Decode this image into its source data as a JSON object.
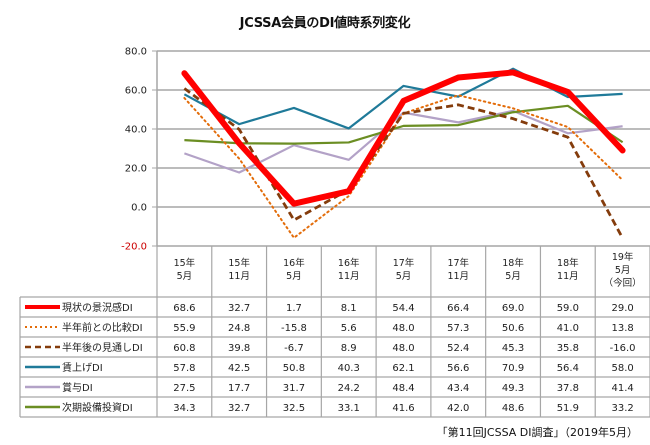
{
  "chart_data": {
    "type": "line",
    "title": "JCSSA会員のDI値時系列変化",
    "xlabel": "",
    "ylabel": "",
    "ylim": [
      -20,
      80
    ],
    "yticks": [
      "80.0",
      "60.0",
      "40.0",
      "20.0",
      "0.0",
      "-20.0"
    ],
    "ytick_values": [
      80,
      60,
      40,
      20,
      0,
      -20
    ],
    "grid": true,
    "legend": "data-table-left",
    "categories": [
      [
        "15年",
        "5月"
      ],
      [
        "15年",
        "11月"
      ],
      [
        "16年",
        "5月"
      ],
      [
        "16年",
        "11月"
      ],
      [
        "17年",
        "5月"
      ],
      [
        "17年",
        "11月"
      ],
      [
        "18年",
        "5月"
      ],
      [
        "18年",
        "11月"
      ],
      [
        "19年",
        "5月",
        "（今回）"
      ]
    ],
    "series": [
      {
        "name": "現状の景況感DI",
        "color": "#ff0000",
        "style": "solid-thick",
        "values": [
          68.6,
          32.7,
          1.7,
          8.1,
          54.4,
          66.4,
          69.0,
          59.0,
          29.0
        ],
        "labels": [
          "68.6",
          "32.7",
          "1.7",
          "8.1",
          "54.4",
          "66.4",
          "69.0",
          "59.0",
          "29.0"
        ]
      },
      {
        "name": "半年前との比較DI",
        "color": "#e36c09",
        "style": "dotted",
        "values": [
          55.9,
          24.8,
          -15.8,
          5.6,
          48.0,
          57.3,
          50.6,
          41.0,
          13.8
        ],
        "labels": [
          "55.9",
          "24.8",
          "-15.8",
          "5.6",
          "48.0",
          "57.3",
          "50.6",
          "41.0",
          "13.8"
        ]
      },
      {
        "name": "半年後の見通しDI",
        "color": "#843c0c",
        "style": "dashed",
        "values": [
          60.8,
          39.8,
          -6.7,
          8.9,
          48.0,
          52.4,
          45.3,
          35.8,
          -16.0
        ],
        "labels": [
          "60.8",
          "39.8",
          "-6.7",
          "8.9",
          "48.0",
          "52.4",
          "45.3",
          "35.8",
          "-16.0"
        ]
      },
      {
        "name": "賃上げDI",
        "color": "#1f7a99",
        "style": "solid",
        "values": [
          57.8,
          42.5,
          50.8,
          40.3,
          62.1,
          56.6,
          70.9,
          56.4,
          58.0
        ],
        "labels": [
          "57.8",
          "42.5",
          "50.8",
          "40.3",
          "62.1",
          "56.6",
          "70.9",
          "56.4",
          "58.0"
        ]
      },
      {
        "name": "賞与DI",
        "color": "#b3a2c7",
        "style": "solid",
        "values": [
          27.5,
          17.7,
          31.7,
          24.2,
          48.4,
          43.4,
          49.3,
          37.8,
          41.4
        ],
        "labels": [
          "27.5",
          "17.7",
          "31.7",
          "24.2",
          "48.4",
          "43.4",
          "49.3",
          "37.8",
          "41.4"
        ]
      },
      {
        "name": "次期設備投資DI",
        "color": "#6b8e23",
        "style": "solid",
        "values": [
          34.3,
          32.7,
          32.5,
          33.1,
          41.6,
          42.0,
          48.6,
          51.9,
          33.2
        ],
        "labels": [
          "34.3",
          "32.7",
          "32.5",
          "33.1",
          "41.6",
          "42.0",
          "48.6",
          "51.9",
          "33.2"
        ]
      }
    ]
  },
  "footnote": "「第11回JCSSA DI調査」（2019年5月）"
}
